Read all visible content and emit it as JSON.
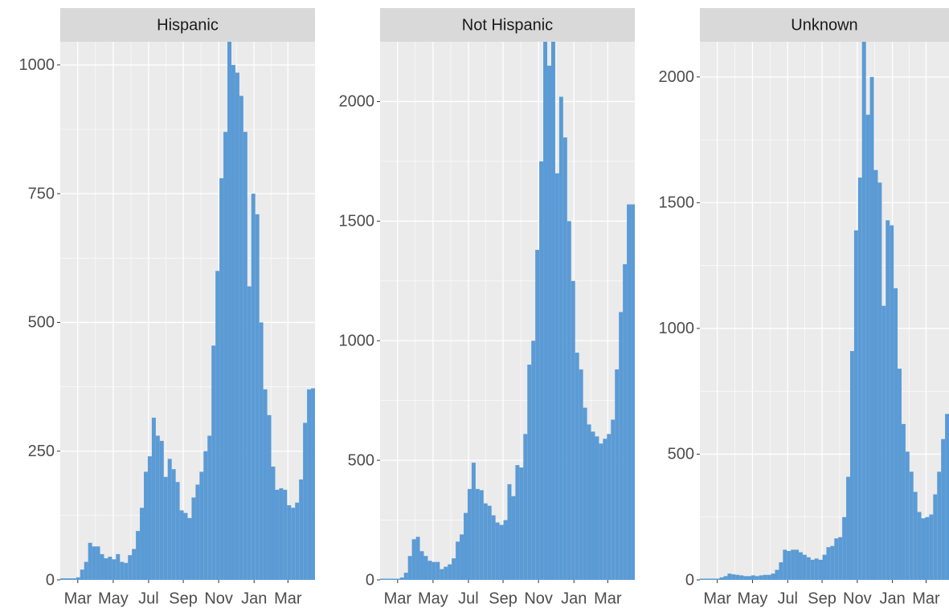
{
  "chart_data": [
    {
      "type": "histogram",
      "title": "Hispanic",
      "color": "#5b9bd5",
      "grid": true,
      "bins": [
        0,
        1,
        2,
        3,
        4,
        5,
        6,
        7,
        8,
        9,
        10,
        11,
        12,
        13,
        14,
        15,
        16,
        17,
        18,
        19,
        20,
        21,
        22,
        23,
        24,
        25,
        26,
        27,
        28,
        29,
        30,
        31,
        32,
        33,
        34,
        35,
        36,
        37,
        38,
        39,
        40,
        41,
        42,
        43,
        44,
        45,
        46,
        47,
        48,
        49,
        50,
        51,
        52,
        53,
        54,
        55,
        56,
        57,
        58,
        59,
        60,
        61,
        62,
        63,
        64
      ],
      "values": [
        3,
        3,
        3,
        3,
        5,
        20,
        35,
        72,
        65,
        65,
        50,
        42,
        45,
        40,
        50,
        35,
        33,
        48,
        60,
        95,
        140,
        210,
        240,
        315,
        280,
        270,
        200,
        235,
        215,
        190,
        135,
        130,
        120,
        160,
        185,
        210,
        250,
        280,
        455,
        600,
        780,
        870,
        1045,
        1000,
        985,
        940,
        870,
        570,
        750,
        710,
        500,
        370,
        320,
        220,
        175,
        178,
        175,
        145,
        140,
        150,
        195,
        305,
        370,
        372
      ],
      "xlim": [
        0,
        64
      ],
      "xticks": [
        {
          "value": 4.4,
          "label": "Mar"
        },
        {
          "value": 13.3,
          "label": "May"
        },
        {
          "value": 22.2,
          "label": "Jul"
        },
        {
          "value": 30.9,
          "label": "Sep"
        },
        {
          "value": 39.8,
          "label": "Nov"
        },
        {
          "value": 48.7,
          "label": "Jan"
        },
        {
          "value": 57.2,
          "label": "Mar"
        }
      ],
      "ylim": [
        0,
        1045
      ],
      "yticks": [
        0,
        250,
        500,
        750,
        1000
      ]
    },
    {
      "type": "histogram",
      "title": "Not Hispanic",
      "color": "#5b9bd5",
      "grid": true,
      "bins": [
        0,
        1,
        2,
        3,
        4,
        5,
        6,
        7,
        8,
        9,
        10,
        11,
        12,
        13,
        14,
        15,
        16,
        17,
        18,
        19,
        20,
        21,
        22,
        23,
        24,
        25,
        26,
        27,
        28,
        29,
        30,
        31,
        32,
        33,
        34,
        35,
        36,
        37,
        38,
        39,
        40,
        41,
        42,
        43,
        44,
        45,
        46,
        47,
        48,
        49,
        50,
        51,
        52,
        53,
        54,
        55,
        56,
        57,
        58,
        59,
        60,
        61,
        62,
        63,
        64
      ],
      "values": [
        5,
        5,
        5,
        5,
        5,
        10,
        30,
        100,
        170,
        180,
        120,
        100,
        80,
        75,
        75,
        45,
        55,
        65,
        90,
        160,
        190,
        280,
        380,
        490,
        380,
        375,
        320,
        310,
        270,
        240,
        230,
        250,
        400,
        350,
        480,
        470,
        610,
        900,
        1000,
        1380,
        1750,
        2250,
        2150,
        2250,
        1700,
        2020,
        1850,
        1500,
        1250,
        950,
        880,
        720,
        650,
        620,
        600,
        570,
        590,
        610,
        670,
        880,
        1120,
        1320,
        1570,
        1570
      ],
      "xlim": [
        0,
        64
      ],
      "xticks": [
        {
          "value": 4.4,
          "label": "Mar"
        },
        {
          "value": 13.3,
          "label": "May"
        },
        {
          "value": 22.2,
          "label": "Jul"
        },
        {
          "value": 30.9,
          "label": "Sep"
        },
        {
          "value": 39.8,
          "label": "Nov"
        },
        {
          "value": 48.7,
          "label": "Jan"
        },
        {
          "value": 57.2,
          "label": "Mar"
        }
      ],
      "ylim": [
        0,
        2250
      ],
      "yticks": [
        0,
        500,
        1000,
        1500,
        2000
      ]
    },
    {
      "type": "histogram",
      "title": "Unknown",
      "color": "#5b9bd5",
      "grid": true,
      "bins": [
        0,
        1,
        2,
        3,
        4,
        5,
        6,
        7,
        8,
        9,
        10,
        11,
        12,
        13,
        14,
        15,
        16,
        17,
        18,
        19,
        20,
        21,
        22,
        23,
        24,
        25,
        26,
        27,
        28,
        29,
        30,
        31,
        32,
        33,
        34,
        35,
        36,
        37,
        38,
        39,
        40,
        41,
        42,
        43,
        44,
        45,
        46,
        47,
        48,
        49,
        50,
        51,
        52,
        53,
        54,
        55,
        56,
        57,
        58,
        59,
        60,
        61,
        62,
        63
      ],
      "values": [
        5,
        5,
        5,
        5,
        5,
        10,
        15,
        25,
        22,
        20,
        18,
        15,
        15,
        18,
        15,
        18,
        20,
        20,
        25,
        40,
        70,
        120,
        115,
        120,
        120,
        110,
        100,
        90,
        80,
        85,
        80,
        100,
        130,
        135,
        165,
        170,
        250,
        410,
        910,
        1390,
        1600,
        2140,
        1850,
        2000,
        1630,
        1580,
        1090,
        1430,
        1410,
        1160,
        840,
        620,
        510,
        430,
        350,
        270,
        245,
        250,
        260,
        340,
        430,
        560,
        660
      ],
      "xlim": [
        0,
        63
      ],
      "xticks": [
        {
          "value": 4.4,
          "label": "Mar"
        },
        {
          "value": 13.3,
          "label": "May"
        },
        {
          "value": 22.2,
          "label": "Jul"
        },
        {
          "value": 30.9,
          "label": "Sep"
        },
        {
          "value": 39.8,
          "label": "Nov"
        },
        {
          "value": 48.7,
          "label": "Jan"
        },
        {
          "value": 57.2,
          "label": "Mar"
        }
      ],
      "ylim": [
        0,
        2140
      ],
      "yticks": [
        0,
        500,
        1000,
        1500,
        2000
      ]
    }
  ]
}
